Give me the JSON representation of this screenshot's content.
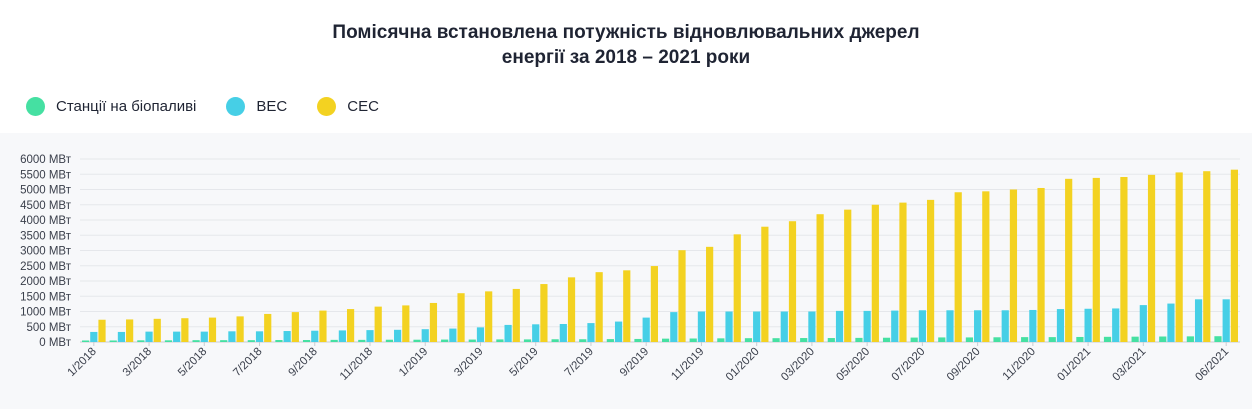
{
  "title_line1": "Помісячна встановлена потужність відновлювальних джерел",
  "title_line2": "енергії за 2018 – 2021 роки",
  "colors": {
    "bio": "#45e0a2",
    "wind": "#46cfe6",
    "solar": "#f3d221",
    "grid": "#e5e7eb",
    "axis_text": "#3a3f4b"
  },
  "chart_data": {
    "type": "bar",
    "title": "Помісячна встановлена потужність відновлювальних джерел енергії за 2018 – 2021 роки",
    "ylim": [
      0,
      6000
    ],
    "y_ticks": [
      "0 МВт",
      "500 МВт",
      "1000 МВт",
      "1500 МВт",
      "2000 МВт",
      "2500 МВт",
      "3000 МВт",
      "3500 МВт",
      "4000 МВт",
      "4500 МВт",
      "5000 МВт",
      "5500 МВт",
      "6000 МВт"
    ],
    "x_tick_labels": [
      "1/2018",
      "3/2018",
      "5/2018",
      "7/2018",
      "9/2018",
      "11/2018",
      "1/2019",
      "3/2019",
      "5/2019",
      "7/2019",
      "9/2019",
      "11/2019",
      "01/2020",
      "03/2020",
      "05/2020",
      "07/2020",
      "09/2020",
      "11/2020",
      "01/2021",
      "03/2021",
      "06/2021"
    ],
    "x_tick_indices": [
      0,
      2,
      4,
      6,
      8,
      10,
      12,
      14,
      16,
      18,
      20,
      22,
      24,
      26,
      28,
      30,
      32,
      34,
      36,
      38,
      41
    ],
    "grid": true,
    "legend_position": "top-left",
    "series": [
      {
        "name": "Станції на біопаливі",
        "color": "#45e0a2",
        "values": [
          50,
          50,
          55,
          55,
          60,
          60,
          60,
          65,
          65,
          70,
          70,
          75,
          75,
          80,
          80,
          85,
          85,
          90,
          90,
          95,
          100,
          110,
          115,
          120,
          125,
          125,
          130,
          130,
          135,
          140,
          145,
          150,
          150,
          155,
          160,
          160,
          165,
          170,
          175,
          180,
          185,
          190
        ]
      },
      {
        "name": "ВЕС",
        "color": "#46cfe6",
        "values": [
          330,
          330,
          340,
          340,
          340,
          350,
          350,
          360,
          370,
          380,
          390,
          400,
          420,
          440,
          480,
          560,
          580,
          590,
          620,
          670,
          800,
          980,
          1000,
          1000,
          1000,
          1000,
          1000,
          1020,
          1020,
          1030,
          1040,
          1040,
          1040,
          1040,
          1050,
          1080,
          1090,
          1100,
          1210,
          1260,
          1400,
          1400
        ]
      },
      {
        "name": "СЕС",
        "color": "#f3d221",
        "values": [
          730,
          740,
          760,
          780,
          800,
          840,
          920,
          980,
          1030,
          1080,
          1160,
          1200,
          1280,
          1600,
          1660,
          1740,
          1900,
          2120,
          2290,
          2350,
          2490,
          3010,
          3120,
          3530,
          3780,
          3960,
          4190,
          4340,
          4500,
          4570,
          4660,
          4910,
          4940,
          5000,
          5050,
          5350,
          5380,
          5410,
          5480,
          5560,
          5600,
          5650
        ]
      }
    ]
  }
}
